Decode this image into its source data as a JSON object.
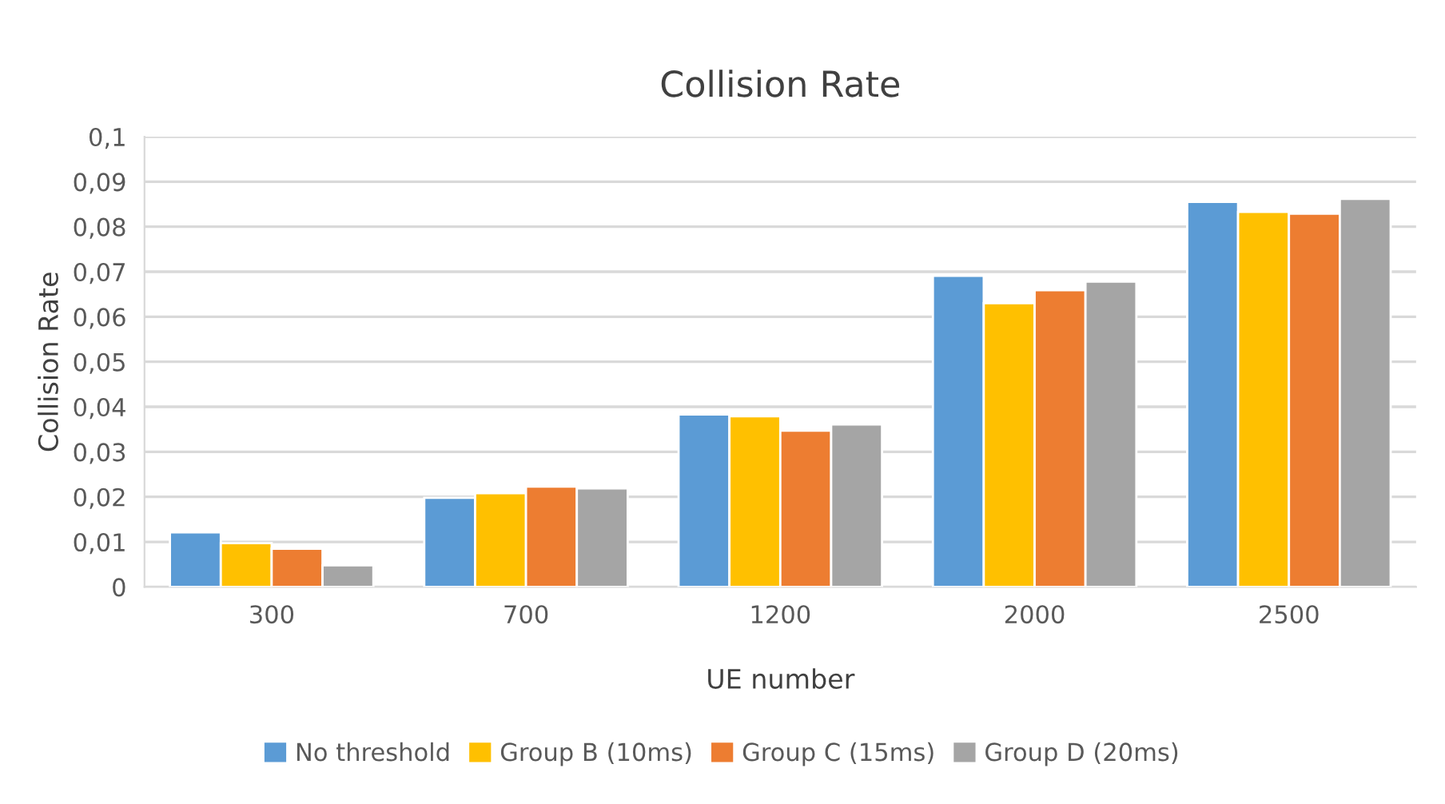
{
  "chart_data": {
    "type": "bar",
    "title": "Collision Rate",
    "xlabel": "UE number",
    "ylabel": "Collision Rate",
    "categories": [
      "300",
      "700",
      "1200",
      "2000",
      "2500"
    ],
    "series": [
      {
        "name": "No threshold",
        "color": "#5b9bd5",
        "values": [
          0.0121,
          0.0198,
          0.0383,
          0.0691,
          0.0855
        ]
      },
      {
        "name": "Group B (10ms)",
        "color": "#ffc000",
        "values": [
          0.0097,
          0.0208,
          0.0379,
          0.063,
          0.0833
        ]
      },
      {
        "name": "Group C (15ms)",
        "color": "#ed7d31",
        "values": [
          0.0085,
          0.0223,
          0.0347,
          0.0659,
          0.0829
        ]
      },
      {
        "name": "Group D (20ms)",
        "color": "#a5a5a5",
        "values": [
          0.0048,
          0.0219,
          0.0361,
          0.0678,
          0.0862
        ]
      }
    ],
    "ylim": [
      0,
      0.1
    ],
    "yticks": [
      {
        "value": 0,
        "label": "0"
      },
      {
        "value": 0.01,
        "label": "0,01"
      },
      {
        "value": 0.02,
        "label": "0,02"
      },
      {
        "value": 0.03,
        "label": "0,03"
      },
      {
        "value": 0.04,
        "label": "0,04"
      },
      {
        "value": 0.05,
        "label": "0,05"
      },
      {
        "value": 0.06,
        "label": "0,06"
      },
      {
        "value": 0.07,
        "label": "0,07"
      },
      {
        "value": 0.08,
        "label": "0,08"
      },
      {
        "value": 0.09,
        "label": "0,09"
      },
      {
        "value": 0.1,
        "label": "0,1"
      }
    ],
    "grid": "y",
    "legend": "bottom"
  }
}
